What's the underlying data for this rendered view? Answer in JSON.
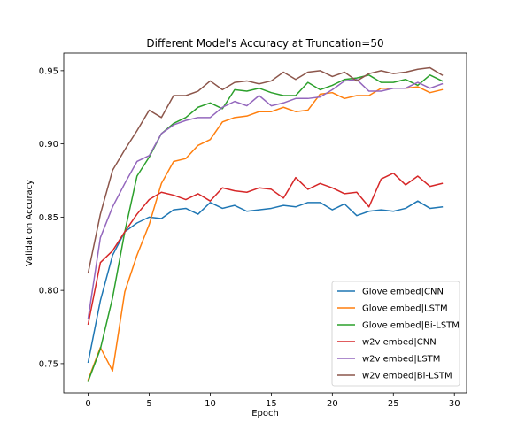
{
  "chart_data": {
    "type": "line",
    "title": "Different Model's Accuracy at Truncation=50",
    "xlabel": "Epoch",
    "ylabel": "Validation Accuracy",
    "xlim": [
      -2,
      31
    ],
    "ylim": [
      0.73,
      0.962
    ],
    "xticks": [
      0,
      5,
      10,
      15,
      20,
      25,
      30
    ],
    "yticks": [
      0.75,
      0.8,
      0.85,
      0.9,
      0.95
    ],
    "ytick_labels": [
      "0.75",
      "0.80",
      "0.85",
      "0.90",
      "0.95"
    ],
    "grid": false,
    "legend_position": "lower-right",
    "x": [
      0,
      1,
      2,
      3,
      4,
      5,
      6,
      7,
      8,
      9,
      10,
      11,
      12,
      13,
      14,
      15,
      16,
      17,
      18,
      19,
      20,
      21,
      22,
      23,
      24,
      25,
      26,
      27,
      28,
      29
    ],
    "series": [
      {
        "name": "Glove embed|CNN",
        "color": "#1f77b4",
        "values": [
          0.751,
          0.793,
          0.824,
          0.84,
          0.846,
          0.85,
          0.849,
          0.855,
          0.856,
          0.852,
          0.86,
          0.856,
          0.858,
          0.854,
          0.855,
          0.856,
          0.858,
          0.857,
          0.86,
          0.86,
          0.855,
          0.859,
          0.851,
          0.854,
          0.855,
          0.854,
          0.856,
          0.861,
          0.856,
          0.857
        ]
      },
      {
        "name": "Glove embed|LSTM",
        "color": "#ff7f0e",
        "values": [
          0.739,
          0.761,
          0.745,
          0.799,
          0.824,
          0.845,
          0.873,
          0.888,
          0.89,
          0.899,
          0.903,
          0.915,
          0.918,
          0.919,
          0.922,
          0.922,
          0.925,
          0.922,
          0.923,
          0.934,
          0.935,
          0.931,
          0.933,
          0.933,
          0.938,
          0.938,
          0.938,
          0.939,
          0.935,
          0.937
        ]
      },
      {
        "name": "Glove embed|Bi-LSTM",
        "color": "#2ca02c",
        "values": [
          0.738,
          0.76,
          0.795,
          0.84,
          0.878,
          0.891,
          0.907,
          0.914,
          0.918,
          0.925,
          0.928,
          0.924,
          0.937,
          0.936,
          0.938,
          0.935,
          0.933,
          0.933,
          0.942,
          0.937,
          0.94,
          0.944,
          0.945,
          0.947,
          0.942,
          0.942,
          0.944,
          0.94,
          0.947,
          0.943
        ]
      },
      {
        "name": "w2v embed|CNN",
        "color": "#d62728",
        "values": [
          0.777,
          0.819,
          0.827,
          0.84,
          0.852,
          0.862,
          0.867,
          0.865,
          0.862,
          0.866,
          0.861,
          0.87,
          0.868,
          0.867,
          0.87,
          0.869,
          0.863,
          0.877,
          0.869,
          0.873,
          0.87,
          0.866,
          0.867,
          0.857,
          0.876,
          0.88,
          0.872,
          0.878,
          0.871,
          0.873
        ]
      },
      {
        "name": "w2v embed|LSTM",
        "color": "#9467bd",
        "values": [
          0.781,
          0.836,
          0.857,
          0.873,
          0.888,
          0.892,
          0.907,
          0.913,
          0.916,
          0.918,
          0.918,
          0.925,
          0.929,
          0.926,
          0.933,
          0.926,
          0.928,
          0.931,
          0.931,
          0.932,
          0.937,
          0.943,
          0.944,
          0.936,
          0.936,
          0.938,
          0.938,
          0.942,
          0.938,
          0.941
        ]
      },
      {
        "name": "w2v embed|Bi-LSTM",
        "color": "#8c564b",
        "values": [
          0.812,
          0.852,
          0.882,
          0.896,
          0.909,
          0.923,
          0.918,
          0.933,
          0.933,
          0.936,
          0.943,
          0.937,
          0.942,
          0.943,
          0.941,
          0.943,
          0.949,
          0.944,
          0.949,
          0.95,
          0.946,
          0.949,
          0.943,
          0.948,
          0.95,
          0.948,
          0.949,
          0.951,
          0.952,
          0.947
        ]
      }
    ]
  }
}
